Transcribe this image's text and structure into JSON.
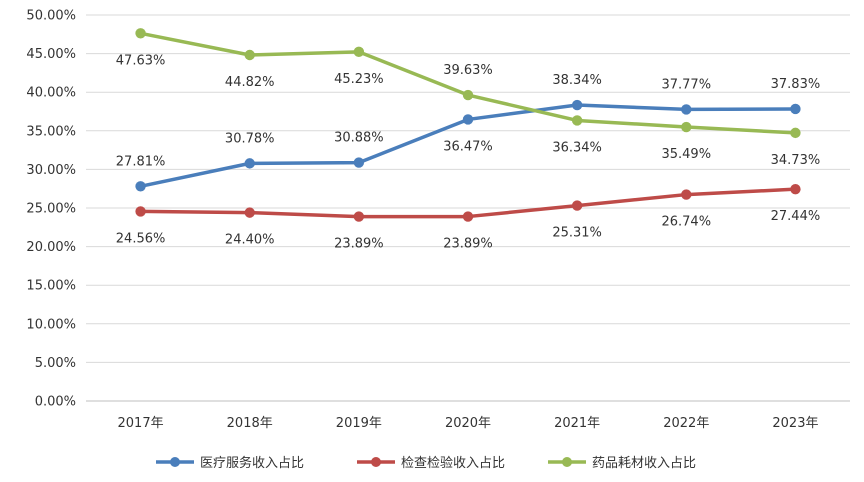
{
  "chart_data": {
    "type": "line",
    "categories": [
      "2017年",
      "2018年",
      "2019年",
      "2020年",
      "2021年",
      "2022年",
      "2023年"
    ],
    "ylim": [
      0,
      50
    ],
    "y_ticks": [
      "0.00%",
      "5.00%",
      "10.00%",
      "15.00%",
      "20.00%",
      "25.00%",
      "30.00%",
      "35.00%",
      "40.00%",
      "45.00%",
      "50.00%"
    ],
    "grid": "horizontal",
    "legend_position": "bottom",
    "series": [
      {
        "name": "医疗服务收入占比",
        "color": "#4a7ebb",
        "values": [
          27.81,
          30.78,
          30.88,
          36.47,
          38.34,
          37.77,
          37.83
        ],
        "labels": [
          "27.81%",
          "30.78%",
          "30.88%",
          "36.47%",
          "38.34%",
          "37.77%",
          "37.83%"
        ]
      },
      {
        "name": "检查检验收入占比",
        "color": "#be4b48",
        "values": [
          24.56,
          24.4,
          23.89,
          23.89,
          25.31,
          26.74,
          27.44
        ],
        "labels": [
          "24.56%",
          "24.40%",
          "23.89%",
          "23.89%",
          "25.31%",
          "26.74%",
          "27.44%"
        ]
      },
      {
        "name": "药品耗材收入占比",
        "color": "#98b954",
        "values": [
          47.63,
          44.82,
          45.23,
          39.63,
          36.34,
          35.49,
          34.73
        ],
        "labels": [
          "47.63%",
          "44.82%",
          "45.23%",
          "39.63%",
          "36.34%",
          "35.49%",
          "34.73%"
        ]
      }
    ]
  }
}
